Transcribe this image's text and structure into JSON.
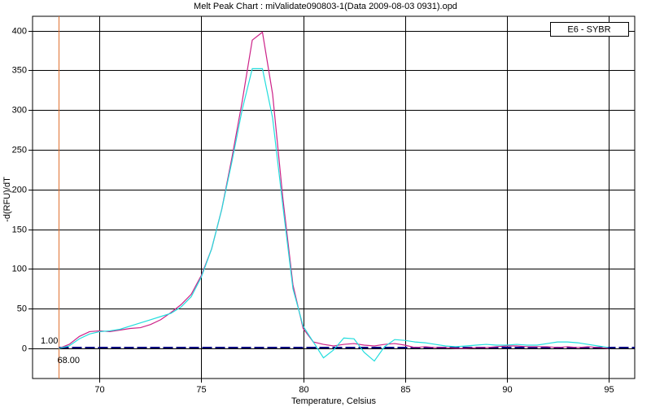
{
  "chart_data": {
    "type": "line",
    "title": "Melt Peak Chart : miValidate090803-1(Data 2009-08-03 0931).opd",
    "x_label": "Temperature, Celsius",
    "y_label": "-d(RFU)/dT",
    "x": [
      68,
      68.5,
      69,
      69.5,
      70,
      70.5,
      71,
      71.5,
      72,
      72.5,
      73,
      73.5,
      74,
      74.5,
      75,
      75.5,
      76,
      76.5,
      77,
      77.5,
      78,
      78.5,
      79,
      79.5,
      80,
      80.5,
      81,
      81.5,
      82,
      82.5,
      83,
      83.5,
      84,
      84.5,
      85,
      85.5,
      86,
      86.5,
      87,
      87.5,
      88,
      88.5,
      89,
      89.5,
      90,
      90.5,
      91,
      91.5,
      92,
      92.5,
      93,
      93.5,
      94,
      94.5,
      95
    ],
    "series": [
      {
        "color": "#cc2288",
        "values": [
          0,
          5,
          15,
          21,
          22,
          21,
          23,
          25,
          26,
          30,
          36,
          45,
          55,
          68,
          92,
          125,
          175,
          240,
          310,
          388,
          398,
          320,
          190,
          80,
          25,
          8,
          5,
          3,
          5,
          6,
          4,
          3,
          5,
          6,
          4,
          1,
          2,
          1,
          1,
          0,
          0,
          1,
          1,
          2,
          3,
          3,
          2,
          2,
          2,
          1,
          2,
          1,
          2,
          1,
          0
        ]
      },
      {
        "color": "#22dddd",
        "values": [
          0,
          3,
          12,
          18,
          21,
          22,
          24,
          28,
          32,
          36,
          40,
          44,
          52,
          65,
          90,
          125,
          175,
          235,
          300,
          352,
          352,
          290,
          180,
          75,
          28,
          8,
          -12,
          -2,
          13,
          12,
          -5,
          -16,
          2,
          11,
          10,
          8,
          7,
          5,
          3,
          2,
          3,
          4,
          5,
          4,
          4,
          5,
          4,
          4,
          6,
          8,
          8,
          7,
          5,
          3,
          1
        ]
      }
    ],
    "xlim": [
      66.7,
      96.3
    ],
    "ylim": [
      -38,
      418
    ],
    "xticks": [
      70,
      75,
      80,
      85,
      90,
      95
    ],
    "yticks": [
      0,
      50,
      100,
      150,
      200,
      250,
      300,
      350,
      400
    ],
    "grid": true,
    "threshold": {
      "value": 1,
      "label": "1.00",
      "color": "#000080"
    },
    "marker": {
      "value": 68,
      "label": "68.00",
      "color": "#e07030"
    },
    "legend": {
      "label": "E6 - SYBR",
      "position": "upper right"
    }
  }
}
